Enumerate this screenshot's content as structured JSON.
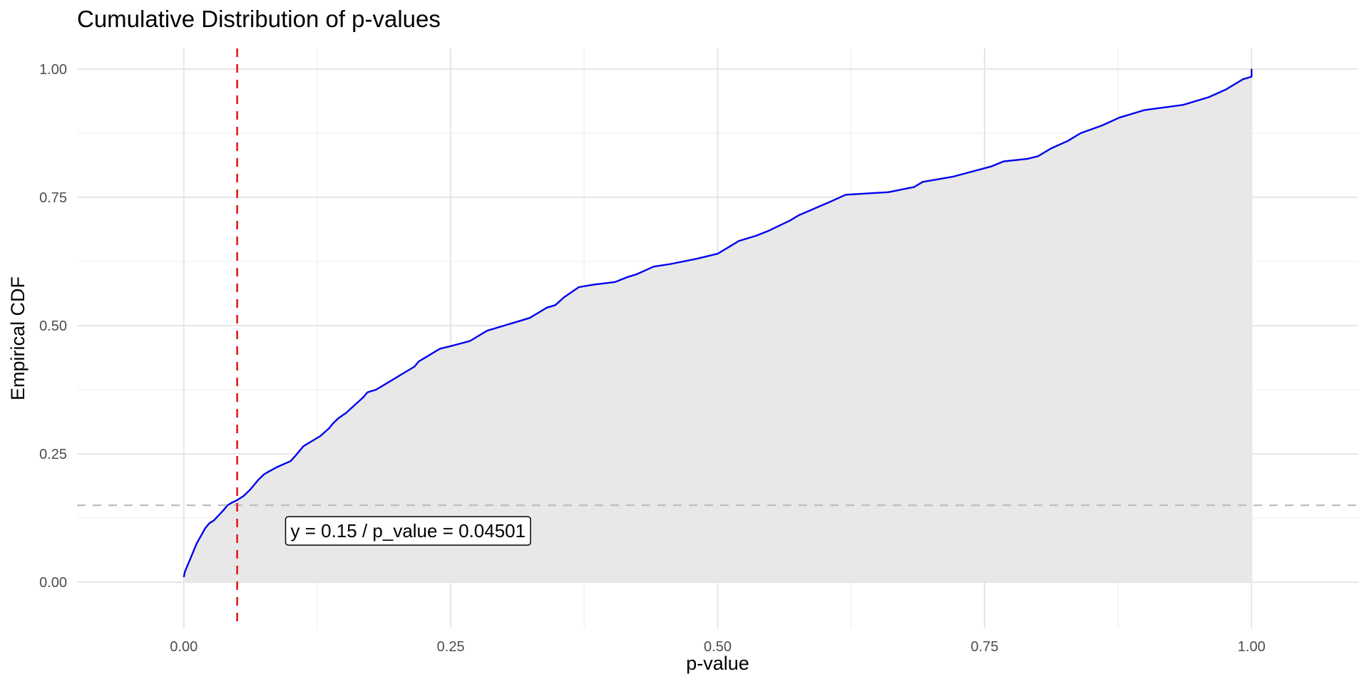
{
  "chart_data": {
    "type": "area",
    "title": "Cumulative Distribution of p-values",
    "xlabel": "p-value",
    "ylabel": "Empirical CDF",
    "xlim": [
      -0.1,
      1.1
    ],
    "ylim": [
      -0.09,
      1.04
    ],
    "x_ticks": [
      0.0,
      0.25,
      0.5,
      0.75,
      1.0
    ],
    "x_tick_labels": [
      "0.00",
      "0.25",
      "0.50",
      "0.75",
      "1.00"
    ],
    "y_ticks": [
      0.0,
      0.25,
      0.5,
      0.75,
      1.0
    ],
    "y_tick_labels": [
      "0.00",
      "0.25",
      "0.50",
      "0.75",
      "1.00"
    ],
    "grid": true,
    "series": [
      {
        "x": [
          0.0,
          0.001,
          0.003,
          0.006,
          0.009,
          0.012,
          0.016,
          0.02,
          0.022,
          0.024,
          0.028,
          0.037,
          0.039,
          0.041,
          0.045,
          0.05,
          0.056,
          0.062,
          0.07,
          0.075,
          0.079,
          0.088,
          0.1,
          0.104,
          0.112,
          0.12,
          0.128,
          0.136,
          0.14,
          0.145,
          0.152,
          0.16,
          0.168,
          0.172,
          0.18,
          0.188,
          0.196,
          0.204,
          0.216,
          0.22,
          0.228,
          0.24,
          0.25,
          0.268,
          0.272,
          0.284,
          0.3,
          0.316,
          0.324,
          0.332,
          0.34,
          0.348,
          0.356,
          0.37,
          0.384,
          0.404,
          0.416,
          0.424,
          0.44,
          0.456,
          0.48,
          0.5,
          0.512,
          0.52,
          0.536,
          0.548,
          0.568,
          0.576,
          0.604,
          0.62,
          0.66,
          0.684,
          0.692,
          0.72,
          0.756,
          0.768,
          0.79,
          0.8,
          0.812,
          0.828,
          0.84,
          0.86,
          0.876,
          0.9,
          0.936,
          0.96,
          0.976,
          0.992,
          1.0,
          1.0
        ],
        "y": [
          0.01,
          0.02,
          0.03,
          0.045,
          0.06,
          0.075,
          0.09,
          0.105,
          0.11,
          0.115,
          0.12,
          0.14,
          0.145,
          0.15,
          0.155,
          0.16,
          0.168,
          0.18,
          0.2,
          0.21,
          0.215,
          0.225,
          0.236,
          0.245,
          0.265,
          0.275,
          0.285,
          0.3,
          0.31,
          0.32,
          0.33,
          0.345,
          0.36,
          0.37,
          0.375,
          0.385,
          0.395,
          0.405,
          0.42,
          0.43,
          0.44,
          0.455,
          0.46,
          0.47,
          0.475,
          0.49,
          0.5,
          0.51,
          0.515,
          0.525,
          0.535,
          0.54,
          0.555,
          0.575,
          0.58,
          0.585,
          0.595,
          0.6,
          0.615,
          0.62,
          0.63,
          0.64,
          0.655,
          0.665,
          0.675,
          0.685,
          0.705,
          0.715,
          0.74,
          0.755,
          0.76,
          0.77,
          0.78,
          0.79,
          0.81,
          0.82,
          0.825,
          0.83,
          0.845,
          0.86,
          0.875,
          0.89,
          0.905,
          0.92,
          0.93,
          0.945,
          0.96,
          0.98,
          0.985,
          1.0
        ],
        "line_color": "#0000ee",
        "fill_color": "#e8e8e8"
      }
    ],
    "reference_lines": {
      "vertical": {
        "x": 0.05,
        "color": "#e41a1c",
        "style": "dashed"
      },
      "horizontal": {
        "y": 0.15,
        "color": "#bebebe",
        "style": "dashed"
      }
    },
    "annotation": {
      "text": "y = 0.15 / p_value = 0.04501",
      "x": 0.1,
      "y": 0.1
    },
    "colors": {
      "background": "#ffffff",
      "grid": "#e6e6e6",
      "line": "#0000ee",
      "area": "#e8e8e8",
      "vline": "#e41a1c",
      "hline": "#bebebe"
    }
  }
}
